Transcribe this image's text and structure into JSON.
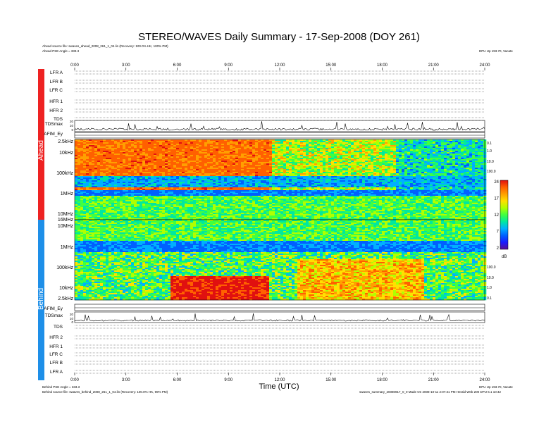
{
  "header": {
    "title": "STEREO/WAVES Daily Summary - 17-Sep-2008 (DOY 261)",
    "ahead_source": "Ahead source file: swaves_ahead_2008_261_1_04.lin (Recovery: 100.0% HK, 100% PM)",
    "ahead_angle": "Ahead PSE Angle = 333.3",
    "top_right": "DPU Up 193.70, Vacate"
  },
  "footer": {
    "behind_angle": "Behind PSE Angle = 333.3",
    "behind_source": "Behind source file: swaves_behind_2008_261_1_04.lin (Recovery: 100.0% HK, 99% PM)",
    "right_line1": "DPU Up 193.70, Vacate",
    "right_line2": "swaves_summary_20080917_0_0 Made On 2008-10-11 2:07:31 PM Herald Web 200 DPU 6.1 10:42",
    "xlabel": "Time (UTC)"
  },
  "side_labels": {
    "ahead": "Ahead",
    "behind": "Behind"
  },
  "colors": {
    "ahead": "#ee2222",
    "behind": "#1e8fe8"
  },
  "chart_data": {
    "type": "heatmap",
    "title": "STEREO/WAVES Daily Summary - 17-Sep-2008 (DOY 261)",
    "xlabel": "Time (UTC)",
    "x_ticks": [
      "0:00",
      "3:00",
      "6:00",
      "9:00",
      "12:00",
      "15:00",
      "18:00",
      "21:00",
      "24:00"
    ],
    "xlim": [
      0,
      24
    ],
    "ahead_rows": [
      "LFR A",
      "LFR B",
      "LFR C",
      "HFR 1",
      "HFR 2",
      "TDS",
      "TDSmax",
      "AFIM_Ey"
    ],
    "behind_rows": [
      "AFIM_Ey",
      "TDSmax",
      "TDS",
      "HFR 2",
      "HFR 1",
      "LFR C",
      "LFR B",
      "LFR A"
    ],
    "ahead_freq_ticks": [
      "2.5kHz",
      "10kHz",
      "100kHz",
      "1MHz",
      "10MHz",
      "16MHz"
    ],
    "behind_freq_ticks": [
      "10MHz",
      "1MHz",
      "100kHz",
      "10kHz",
      "2.5kHz"
    ],
    "right_ticks_ahead": [
      "0.1",
      "1.0",
      "10.0",
      "100.0"
    ],
    "right_ticks_behind": [
      "100.0",
      "10.0",
      "1.0",
      "0.1"
    ],
    "colorbar": {
      "unit": "dB",
      "ticks": [
        "24",
        "17",
        "12",
        "7",
        "2"
      ]
    },
    "tdsmax_ticks": [
      "20",
      "10",
      "0"
    ]
  }
}
